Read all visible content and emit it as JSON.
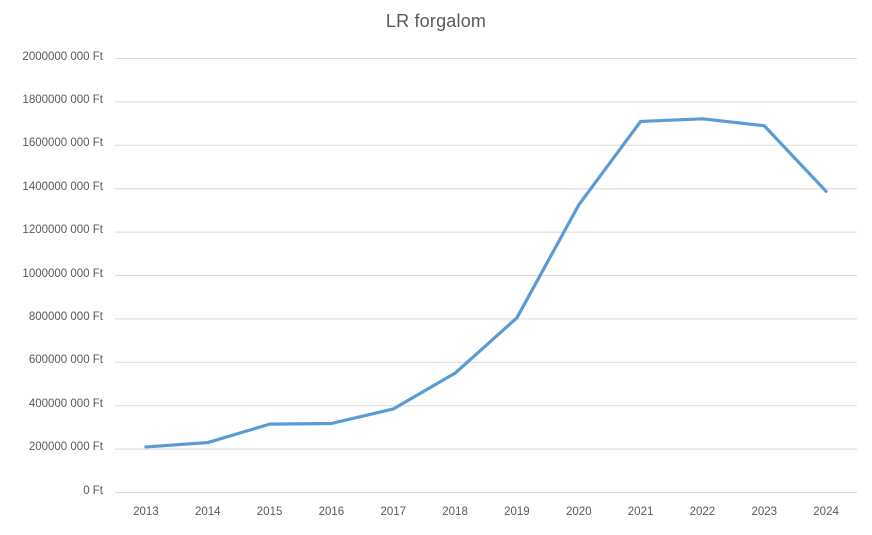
{
  "chart": {
    "title": "LR forgalom"
  },
  "chart_data": {
    "type": "line",
    "title": "LR forgalom",
    "xlabel": "",
    "ylabel": "",
    "categories": [
      "2013",
      "2014",
      "2015",
      "2016",
      "2017",
      "2018",
      "2019",
      "2020",
      "2021",
      "2022",
      "2023",
      "2024"
    ],
    "series": [
      {
        "name": "LR forgalom",
        "values": [
          210000000,
          230000000,
          315000000,
          318000000,
          385000000,
          550000000,
          805000000,
          1325000000,
          1710000000,
          1722000000,
          1690000000,
          1388000000
        ]
      }
    ],
    "ylim": [
      0,
      2000000000
    ],
    "y_tick_step": 200000000,
    "y_tick_labels": [
      "0 Ft",
      "200000 000 Ft",
      "400000 000 Ft",
      "600000 000 Ft",
      "800000 000 Ft",
      "1000000 000 Ft",
      "1200000 000 Ft",
      "1400000 000 Ft",
      "1600000 000 Ft",
      "1800000 000 Ft",
      "2000000 000 Ft"
    ],
    "grid": "horizontal",
    "legend": "none",
    "colors": {
      "line": "#5B9BD5",
      "gridline": "#D9D9D9",
      "axis_line": "#D9D9D9",
      "text": "#595959",
      "background": "#FFFFFF"
    }
  }
}
